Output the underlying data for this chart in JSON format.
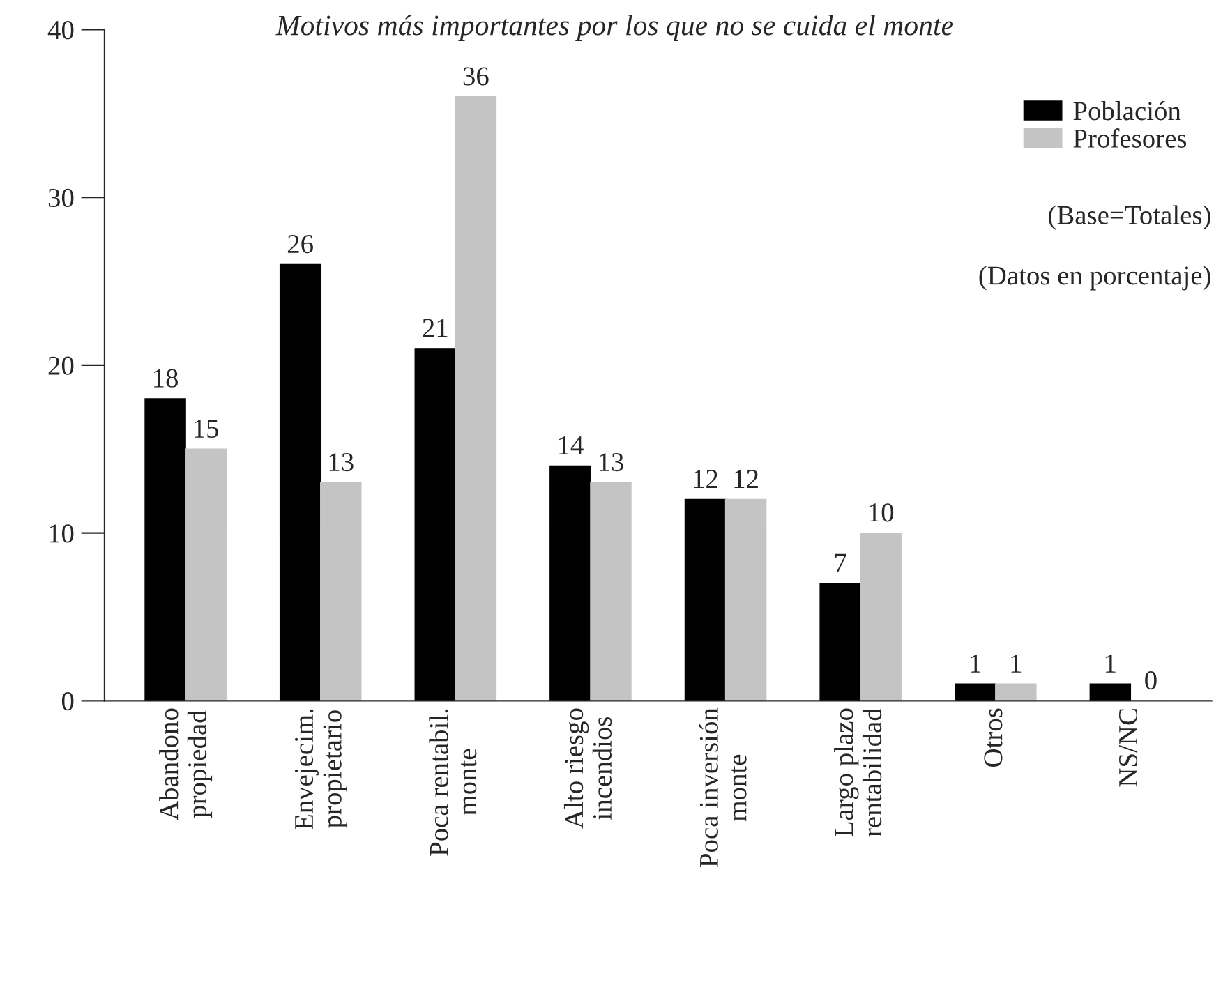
{
  "chart_data": {
    "type": "bar",
    "title": "Motivos más importantes por los que no se cuida el monte",
    "categories": [
      "Abandono\npropiedad",
      "Envejecim.\npropietario",
      "Poca rentabil.\nmonte",
      "Alto riesgo\nincendios",
      "Poca inversión\nmonte",
      "Largo plazo\nrentabilidad",
      "Otros",
      "NS/NC"
    ],
    "series": [
      {
        "name": "Población",
        "color": "#000000",
        "values": [
          18,
          26,
          21,
          14,
          12,
          7,
          1,
          1
        ]
      },
      {
        "name": "Profesores",
        "color": "#c4c4c4",
        "values": [
          15,
          13,
          36,
          13,
          12,
          10,
          1,
          0
        ]
      }
    ],
    "ylim": [
      0,
      40
    ],
    "yticks": [
      0,
      10,
      20,
      30,
      40
    ],
    "data_labels": true,
    "legend": "top right",
    "grid": false,
    "annotations": [
      "(Base=Totales)",
      "(Datos en porcentaje)"
    ]
  }
}
